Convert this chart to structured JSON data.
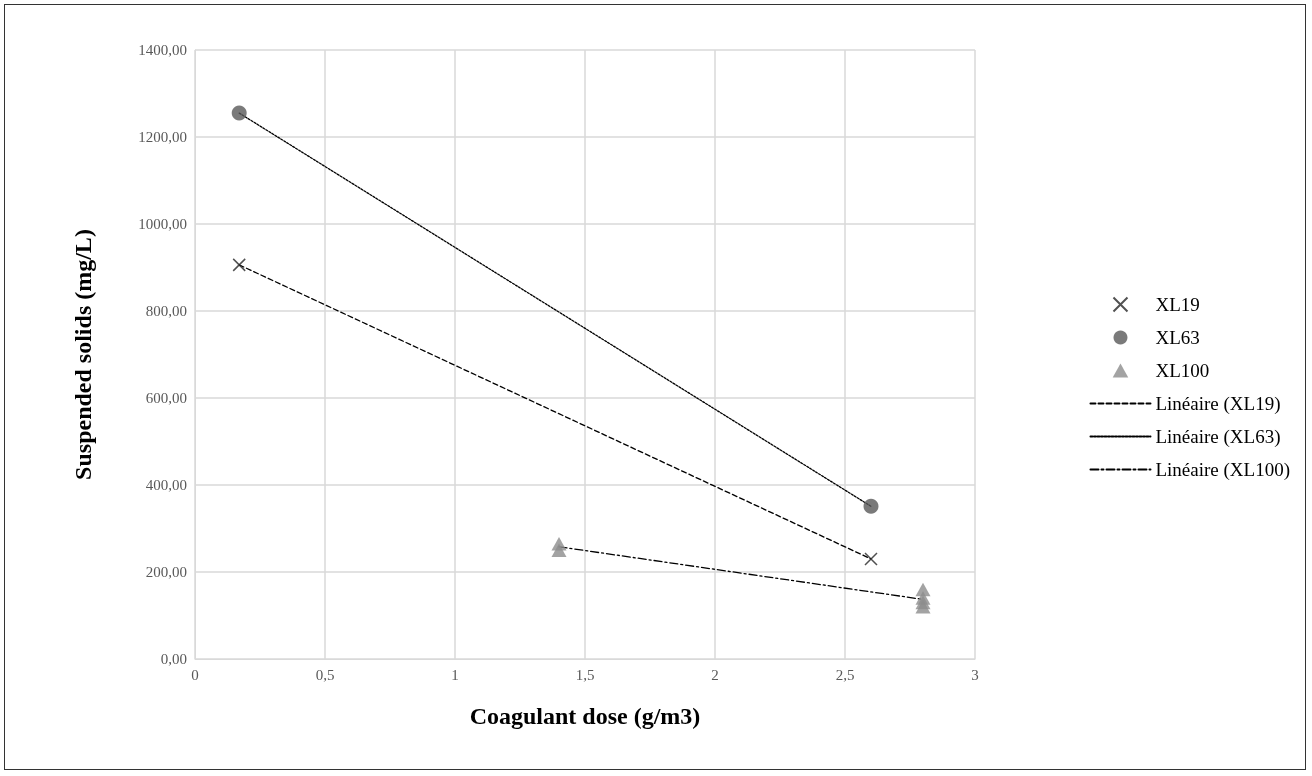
{
  "chart_data": {
    "type": "scatter",
    "xlabel": "Coagulant dose (g/m3)",
    "ylabel": "Suspended solids (mg/L)",
    "xlim": [
      0,
      3
    ],
    "xticks": [
      0,
      {
        "value": 0.5,
        "label": "0,5"
      },
      1,
      {
        "value": 1.5,
        "label": "1,5"
      },
      2,
      {
        "value": 2.5,
        "label": "2,5"
      },
      3
    ],
    "ylim": [
      0,
      1400
    ],
    "yticks": [
      {
        "value": 0,
        "label": "0,00"
      },
      {
        "value": 200,
        "label": "200,00"
      },
      {
        "value": 400,
        "label": "400,00"
      },
      {
        "value": 600,
        "label": "600,00"
      },
      {
        "value": 800,
        "label": "800,00"
      },
      {
        "value": 1000,
        "label": "1000,00"
      },
      {
        "value": 1200,
        "label": "1200,00"
      },
      {
        "value": 1400,
        "label": "1400,00"
      }
    ],
    "grid": true,
    "legend": "right",
    "series": [
      {
        "name": "XL19",
        "marker": "cross",
        "color": "#262626",
        "x": [
          0.17,
          2.6
        ],
        "values": [
          906,
          230
        ]
      },
      {
        "name": "XL63",
        "marker": "circle",
        "color": "#595959",
        "x": [
          0.17,
          2.6
        ],
        "values": [
          1255,
          351
        ]
      },
      {
        "name": "XL100",
        "marker": "triangle",
        "color": "#8c8c8c",
        "x": [
          1.4,
          1.4,
          2.8,
          2.8,
          2.8,
          2.8
        ],
        "values": [
          265,
          250,
          160,
          140,
          130,
          120
        ]
      },
      {
        "name": "Linéaire (XL19)",
        "type": "line",
        "marker": "none",
        "line_style": "dashed",
        "color": "#000000",
        "x": [
          0.17,
          2.6
        ],
        "values": [
          906,
          230
        ]
      },
      {
        "name": "Linéaire (XL63)",
        "type": "line",
        "marker": "none",
        "line_style": "dotted",
        "color": "#000000",
        "x": [
          0.17,
          2.6
        ],
        "values": [
          1255,
          351
        ]
      },
      {
        "name": "Linéaire (XL100)",
        "type": "line",
        "marker": "none",
        "line_style": "dashdot",
        "color": "#000000",
        "x": [
          1.4,
          2.8
        ],
        "values": [
          258,
          137
        ]
      }
    ]
  }
}
